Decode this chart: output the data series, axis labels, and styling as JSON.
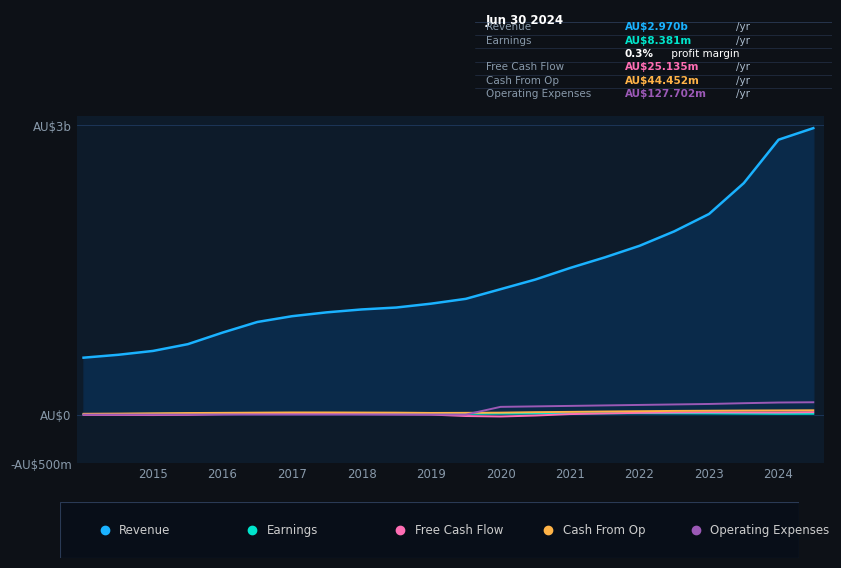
{
  "bg_color": "#0d1117",
  "plot_bg_color": "#0d1b2a",
  "grid_color": "#1e3a5f",
  "years": [
    2014.0,
    2014.5,
    2015.0,
    2015.5,
    2016.0,
    2016.5,
    2017.0,
    2017.5,
    2018.0,
    2018.5,
    2019.0,
    2019.5,
    2020.0,
    2020.5,
    2021.0,
    2021.5,
    2022.0,
    2022.5,
    2023.0,
    2023.5,
    2024.0,
    2024.5
  ],
  "revenue": [
    590,
    620,
    660,
    730,
    850,
    960,
    1020,
    1060,
    1090,
    1110,
    1150,
    1200,
    1300,
    1400,
    1520,
    1630,
    1750,
    1900,
    2080,
    2400,
    2850,
    2970
  ],
  "earnings": [
    5,
    6,
    8,
    10,
    14,
    12,
    10,
    9,
    8,
    7,
    6,
    8,
    10,
    11,
    12,
    13,
    14,
    13,
    12,
    10,
    8,
    8.381
  ],
  "free_cash_flow": [
    -3,
    -4,
    -5,
    -3,
    4,
    7,
    8,
    7,
    5,
    3,
    0,
    -15,
    -20,
    -10,
    5,
    12,
    18,
    22,
    24,
    23,
    22,
    25.135
  ],
  "cash_from_op": [
    8,
    10,
    13,
    16,
    18,
    20,
    22,
    22,
    21,
    20,
    17,
    18,
    20,
    25,
    28,
    32,
    35,
    38,
    40,
    42,
    43,
    44.452
  ],
  "operating_expenses": [
    0,
    0,
    0,
    0,
    0,
    0,
    0,
    0,
    0,
    0,
    0,
    0,
    80,
    85,
    90,
    95,
    100,
    105,
    110,
    118,
    125,
    127.702
  ],
  "revenue_color": "#1ab2ff",
  "revenue_fill": "#0a2a4a",
  "earnings_color": "#00e5cc",
  "free_cash_flow_color": "#ff6eb4",
  "cash_from_op_color": "#ffb347",
  "operating_expenses_color": "#9b59b6",
  "ylim_min": -500,
  "ylim_max": 3100,
  "yticks": [
    -500,
    0,
    3000
  ],
  "ytick_labels": [
    "-AU$500m",
    "AU$0",
    "AU$3b"
  ],
  "xticks": [
    2015,
    2016,
    2017,
    2018,
    2019,
    2020,
    2021,
    2022,
    2023,
    2024
  ],
  "xlim_min": 2013.9,
  "xlim_max": 2024.65,
  "infobox": {
    "date": "Jun 30 2024",
    "rows": [
      {
        "label": "Revenue",
        "value": "AU$2.970b",
        "unit": "/yr",
        "value_color": "#1ab2ff"
      },
      {
        "label": "Earnings",
        "value": "AU$8.381m",
        "unit": "/yr",
        "value_color": "#00e5cc"
      },
      {
        "label": "",
        "value": "0.3%",
        "unit": " profit margin",
        "value_color": "#ffffff",
        "is_margin": true
      },
      {
        "label": "Free Cash Flow",
        "value": "AU$25.135m",
        "unit": "/yr",
        "value_color": "#ff6eb4"
      },
      {
        "label": "Cash From Op",
        "value": "AU$44.452m",
        "unit": "/yr",
        "value_color": "#ffb347"
      },
      {
        "label": "Operating Expenses",
        "value": "AU$127.702m",
        "unit": "/yr",
        "value_color": "#9b59b6"
      }
    ]
  },
  "legend_items": [
    {
      "label": "Revenue",
      "color": "#1ab2ff"
    },
    {
      "label": "Earnings",
      "color": "#00e5cc"
    },
    {
      "label": "Free Cash Flow",
      "color": "#ff6eb4"
    },
    {
      "label": "Cash From Op",
      "color": "#ffb347"
    },
    {
      "label": "Operating Expenses",
      "color": "#9b59b6"
    }
  ]
}
